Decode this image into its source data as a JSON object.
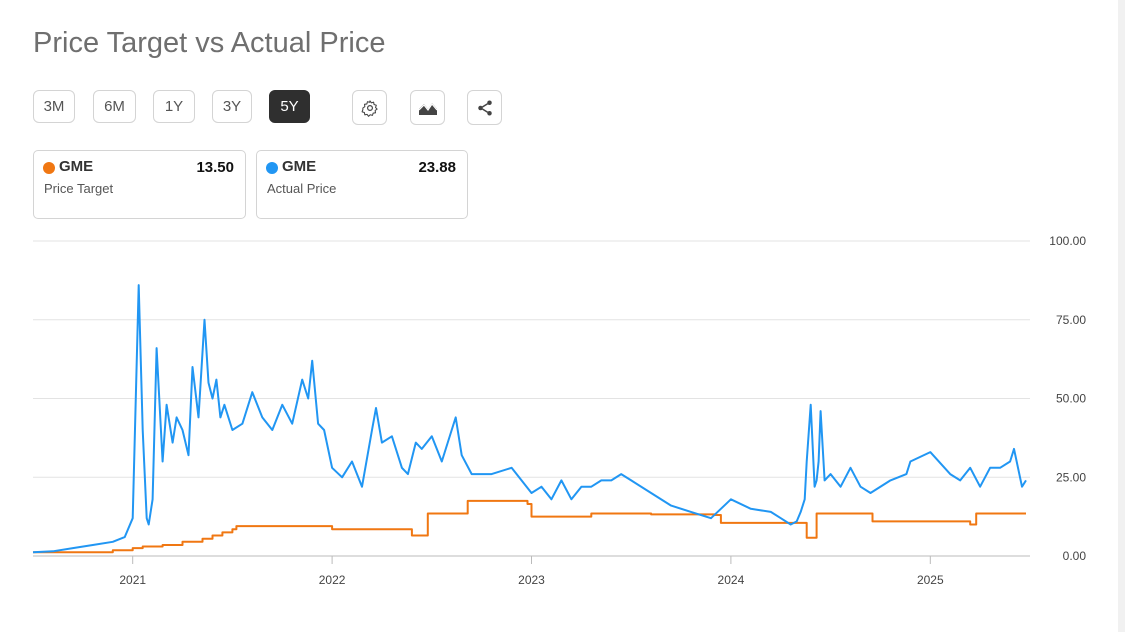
{
  "title": "Price Target vs Actual Price",
  "ranges": [
    "3M",
    "6M",
    "1Y",
    "3Y",
    "5Y"
  ],
  "active_range": "5Y",
  "tools": [
    "settings-icon",
    "chart-type-icon",
    "share-icon"
  ],
  "legend": [
    {
      "ticker": "GME",
      "label": "Price Target",
      "value": "13.50",
      "color": "#f07712"
    },
    {
      "ticker": "GME",
      "label": "Actual Price",
      "value": "23.88",
      "color": "#2196f3"
    }
  ],
  "chart_data": {
    "type": "line",
    "title": "Price Target vs Actual Price",
    "x_ticks": [
      "2021",
      "2022",
      "2023",
      "2024",
      "2025"
    ],
    "y_ticks": [
      "100.00",
      "75.00",
      "50.00",
      "25.00",
      "0.00"
    ],
    "ylim": [
      0,
      100
    ],
    "xlim": [
      2020.5,
      2025.5
    ],
    "grid": true,
    "series": [
      {
        "name": "Price Target",
        "color": "#f07712",
        "step": true,
        "x": [
          2020.5,
          2020.9,
          2021.0,
          2021.05,
          2021.15,
          2021.25,
          2021.35,
          2021.4,
          2021.45,
          2021.5,
          2021.52,
          2022.0,
          2022.2,
          2022.4,
          2022.42,
          2022.48,
          2022.5,
          2022.68,
          2022.98,
          2023.0,
          2023.05,
          2023.3,
          2023.6,
          2023.92,
          2023.95,
          2024.2,
          2024.38,
          2024.42,
          2024.43,
          2024.71,
          2025.2,
          2025.23,
          2025.48
        ],
        "y": [
          1.2,
          1.8,
          2.5,
          3.0,
          3.5,
          4.5,
          5.5,
          6.5,
          7.5,
          8.5,
          9.5,
          8.5,
          8.5,
          6.5,
          6.5,
          13.5,
          13.5,
          17.5,
          16.5,
          12.5,
          12.5,
          13.5,
          13.2,
          13.0,
          10.5,
          10.5,
          5.8,
          5.8,
          13.5,
          11.0,
          10.0,
          13.5,
          13.5
        ]
      },
      {
        "name": "Actual Price",
        "color": "#2196f3",
        "x": [
          2020.5,
          2020.6,
          2020.7,
          2020.8,
          2020.9,
          2020.96,
          2021.0,
          2021.03,
          2021.05,
          2021.07,
          2021.08,
          2021.1,
          2021.12,
          2021.15,
          2021.17,
          2021.2,
          2021.22,
          2021.25,
          2021.28,
          2021.3,
          2021.33,
          2021.36,
          2021.38,
          2021.4,
          2021.42,
          2021.44,
          2021.46,
          2021.5,
          2021.55,
          2021.6,
          2021.65,
          2021.7,
          2021.75,
          2021.8,
          2021.85,
          2021.88,
          2021.9,
          2021.93,
          2021.96,
          2022.0,
          2022.05,
          2022.1,
          2022.15,
          2022.2,
          2022.22,
          2022.25,
          2022.3,
          2022.35,
          2022.38,
          2022.42,
          2022.45,
          2022.5,
          2022.55,
          2022.6,
          2022.62,
          2022.65,
          2022.7,
          2022.8,
          2022.9,
          2023.0,
          2023.05,
          2023.1,
          2023.15,
          2023.2,
          2023.25,
          2023.3,
          2023.35,
          2023.4,
          2023.45,
          2023.5,
          2023.6,
          2023.7,
          2023.8,
          2023.9,
          2023.95,
          2024.0,
          2024.1,
          2024.2,
          2024.25,
          2024.3,
          2024.33,
          2024.35,
          2024.37,
          2024.38,
          2024.4,
          2024.42,
          2024.43,
          2024.44,
          2024.45,
          2024.47,
          2024.5,
          2024.55,
          2024.6,
          2024.65,
          2024.7,
          2024.8,
          2024.88,
          2024.9,
          2025.0,
          2025.1,
          2025.15,
          2025.2,
          2025.25,
          2025.3,
          2025.35,
          2025.4,
          2025.42,
          2025.44,
          2025.46,
          2025.48
        ],
        "y": [
          1.2,
          1.5,
          2.5,
          3.5,
          4.5,
          6,
          12,
          86,
          40,
          12,
          10,
          18,
          66,
          30,
          48,
          36,
          44,
          40,
          32,
          60,
          44,
          75,
          55,
          50,
          56,
          44,
          48,
          40,
          42,
          52,
          44,
          40,
          48,
          42,
          56,
          50,
          62,
          42,
          40,
          28,
          25,
          30,
          22,
          40,
          47,
          36,
          38,
          28,
          26,
          36,
          34,
          38,
          30,
          40,
          44,
          32,
          26,
          26,
          28,
          20,
          22,
          18,
          24,
          18,
          22,
          22,
          24,
          24,
          26,
          24,
          20,
          16,
          14,
          12,
          15,
          18,
          15,
          14,
          12,
          10,
          11,
          14,
          18,
          30,
          48,
          22,
          24,
          30,
          46,
          24,
          26,
          22,
          28,
          22,
          20,
          24,
          26,
          30,
          33,
          26,
          24,
          28,
          22,
          28,
          28,
          30,
          34,
          28,
          22,
          24
        ]
      }
    ]
  }
}
